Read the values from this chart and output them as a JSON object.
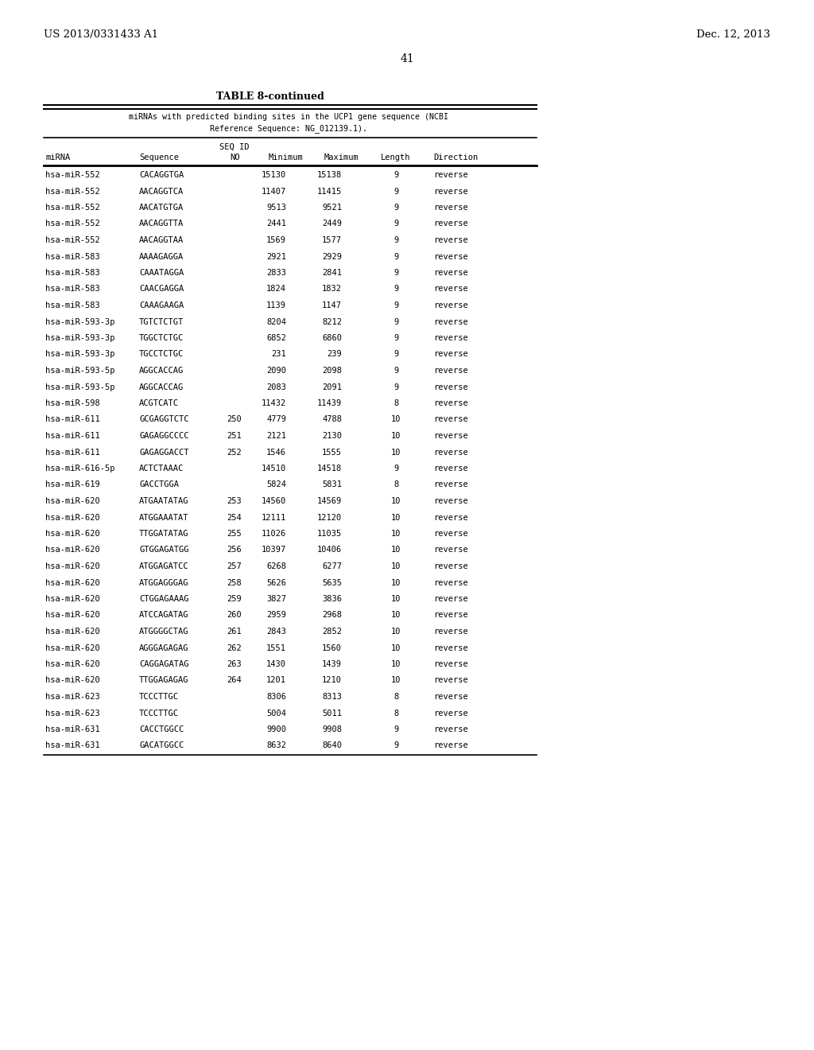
{
  "title_left": "US 2013/0331433 A1",
  "title_right": "Dec. 12, 2013",
  "page_number": "41",
  "table_title": "TABLE 8-continued",
  "table_subtitle_line1": "miRNAs with predicted binding sites in the UCP1 gene sequence (NCBI",
  "table_subtitle_line2": "Reference Sequence: NG_012139.1).",
  "col_header_seqid": "SEQ ID",
  "col_header_no": "NO",
  "col_headers": [
    "miRNA",
    "Sequence",
    "Minimum",
    "Maximum",
    "Length",
    "Direction"
  ],
  "rows": [
    [
      "hsa-miR-552",
      "CACAGGTGA",
      "",
      "15130",
      "15138",
      "9",
      "reverse"
    ],
    [
      "hsa-miR-552",
      "AACAGGTCA",
      "",
      "11407",
      "11415",
      "9",
      "reverse"
    ],
    [
      "hsa-miR-552",
      "AACATGTGA",
      "",
      "9513",
      "9521",
      "9",
      "reverse"
    ],
    [
      "hsa-miR-552",
      "AACAGGTTA",
      "",
      "2441",
      "2449",
      "9",
      "reverse"
    ],
    [
      "hsa-miR-552",
      "AACAGGTAA",
      "",
      "1569",
      "1577",
      "9",
      "reverse"
    ],
    [
      "hsa-miR-583",
      "AAAAGAGGA",
      "",
      "2921",
      "2929",
      "9",
      "reverse"
    ],
    [
      "hsa-miR-583",
      "CAAATAGGA",
      "",
      "2833",
      "2841",
      "9",
      "reverse"
    ],
    [
      "hsa-miR-583",
      "CAACGAGGA",
      "",
      "1824",
      "1832",
      "9",
      "reverse"
    ],
    [
      "hsa-miR-583",
      "CAAAGAAGA",
      "",
      "1139",
      "1147",
      "9",
      "reverse"
    ],
    [
      "hsa-miR-593-3p",
      "TGTCTCTGT",
      "",
      "8204",
      "8212",
      "9",
      "reverse"
    ],
    [
      "hsa-miR-593-3p",
      "TGGCTCTGC",
      "",
      "6852",
      "6860",
      "9",
      "reverse"
    ],
    [
      "hsa-miR-593-3p",
      "TGCCTCTGC",
      "",
      "231",
      "239",
      "9",
      "reverse"
    ],
    [
      "hsa-miR-593-5p",
      "AGGCACCAG",
      "",
      "2090",
      "2098",
      "9",
      "reverse"
    ],
    [
      "hsa-miR-593-5p",
      "AGGCACCAG",
      "",
      "2083",
      "2091",
      "9",
      "reverse"
    ],
    [
      "hsa-miR-598",
      "ACGTCATC",
      "",
      "11432",
      "11439",
      "8",
      "reverse"
    ],
    [
      "hsa-miR-611",
      "GCGAGGTCTC",
      "250",
      "4779",
      "4788",
      "10",
      "reverse"
    ],
    [
      "hsa-miR-611",
      "GAGAGGCCCC",
      "251",
      "2121",
      "2130",
      "10",
      "reverse"
    ],
    [
      "hsa-miR-611",
      "GAGAGGACCT",
      "252",
      "1546",
      "1555",
      "10",
      "reverse"
    ],
    [
      "hsa-miR-616-5p",
      "ACTCTAAAC",
      "",
      "14510",
      "14518",
      "9",
      "reverse"
    ],
    [
      "hsa-miR-619",
      "GACCTGGA",
      "",
      "5824",
      "5831",
      "8",
      "reverse"
    ],
    [
      "hsa-miR-620",
      "ATGAATATAG",
      "253",
      "14560",
      "14569",
      "10",
      "reverse"
    ],
    [
      "hsa-miR-620",
      "ATGGAAATAT",
      "254",
      "12111",
      "12120",
      "10",
      "reverse"
    ],
    [
      "hsa-miR-620",
      "TTGGATATAG",
      "255",
      "11026",
      "11035",
      "10",
      "reverse"
    ],
    [
      "hsa-miR-620",
      "GTGGAGATGG",
      "256",
      "10397",
      "10406",
      "10",
      "reverse"
    ],
    [
      "hsa-miR-620",
      "ATGGAGATCC",
      "257",
      "6268",
      "6277",
      "10",
      "reverse"
    ],
    [
      "hsa-miR-620",
      "ATGGAGGGAG",
      "258",
      "5626",
      "5635",
      "10",
      "reverse"
    ],
    [
      "hsa-miR-620",
      "CTGGAGAAAG",
      "259",
      "3827",
      "3836",
      "10",
      "reverse"
    ],
    [
      "hsa-miR-620",
      "ATCCAGATAG",
      "260",
      "2959",
      "2968",
      "10",
      "reverse"
    ],
    [
      "hsa-miR-620",
      "ATGGGGCTAG",
      "261",
      "2843",
      "2852",
      "10",
      "reverse"
    ],
    [
      "hsa-miR-620",
      "AGGGAGAGAG",
      "262",
      "1551",
      "1560",
      "10",
      "reverse"
    ],
    [
      "hsa-miR-620",
      "CAGGAGATAG",
      "263",
      "1430",
      "1439",
      "10",
      "reverse"
    ],
    [
      "hsa-miR-620",
      "TTGGAGAGAG",
      "264",
      "1201",
      "1210",
      "10",
      "reverse"
    ],
    [
      "hsa-miR-623",
      "TCCCTTGC",
      "",
      "8306",
      "8313",
      "8",
      "reverse"
    ],
    [
      "hsa-miR-623",
      "TCCCTTGC",
      "",
      "5004",
      "5011",
      "8",
      "reverse"
    ],
    [
      "hsa-miR-631",
      "CACCTGGCC",
      "",
      "9900",
      "9908",
      "9",
      "reverse"
    ],
    [
      "hsa-miR-631",
      "GACATGGCC",
      "",
      "8632",
      "8640",
      "9",
      "reverse"
    ]
  ],
  "bg_color": "#ffffff",
  "text_color": "#000000"
}
